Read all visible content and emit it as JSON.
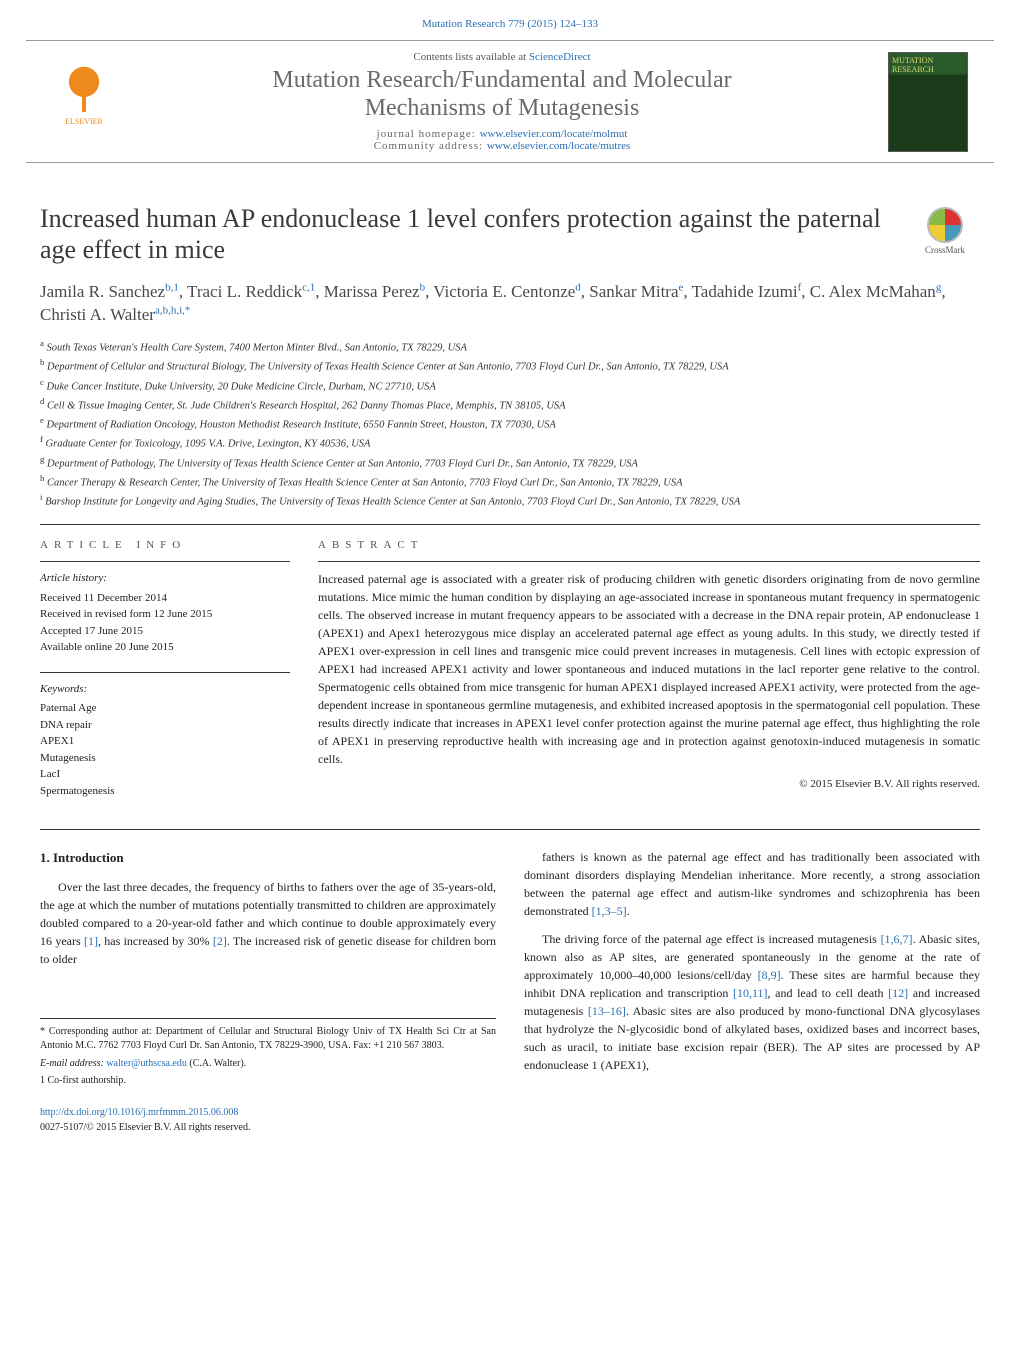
{
  "running_head": "Mutation Research 779 (2015) 124–133",
  "banner": {
    "contents_prefix": "Contents lists available at ",
    "contents_link": "ScienceDirect",
    "journal_name_l1": "Mutation Research/Fundamental and Molecular",
    "journal_name_l2": "Mechanisms of Mutagenesis",
    "homepage_label": "journal homepage: ",
    "homepage_url": "www.elsevier.com/locate/molmut",
    "community_label": "Community address: ",
    "community_url": "www.elsevier.com/locate/mutres",
    "elsevier_label": "ELSEVIER",
    "cover_text": "MUTATION RESEARCH"
  },
  "crossmark_label": "CrossMark",
  "title": "Increased human AP endonuclease 1 level confers protection against the paternal age effect in mice",
  "authors_html": "Jamila R. Sanchez<sup>b,1</sup>, Traci L. Reddick<sup>c,1</sup>, Marissa Perez<sup>b</sup>, Victoria E. Centonze<sup>d</sup>, Sankar Mitra<sup>e</sup>, Tadahide Izumi<sup>f</sup>, C. Alex McMahan<sup>g</sup>, Christi A. Walter<sup>a,b,h,i,*</sup>",
  "affiliations": [
    {
      "key": "a",
      "text": "South Texas Veteran's Health Care System, 7400 Merton Minter Blvd., San Antonio, TX 78229, USA"
    },
    {
      "key": "b",
      "text": "Department of Cellular and Structural Biology, The University of Texas Health Science Center at San Antonio, 7703 Floyd Curl Dr., San Antonio, TX 78229, USA"
    },
    {
      "key": "c",
      "text": "Duke Cancer Institute, Duke University, 20 Duke Medicine Circle, Durham, NC 27710, USA"
    },
    {
      "key": "d",
      "text": "Cell & Tissue Imaging Center, St. Jude Children's Research Hospital, 262 Danny Thomas Place, Memphis, TN 38105, USA"
    },
    {
      "key": "e",
      "text": "Department of Radiation Oncology, Houston Methodist Research Institute, 6550 Fannin Street, Houston, TX 77030, USA"
    },
    {
      "key": "f",
      "text": "Graduate Center for Toxicology, 1095 V.A. Drive, Lexington, KY 40536, USA"
    },
    {
      "key": "g",
      "text": "Department of Pathology, The University of Texas Health Science Center at San Antonio, 7703 Floyd Curl Dr., San Antonio, TX 78229, USA"
    },
    {
      "key": "h",
      "text": "Cancer Therapy & Research Center, The University of Texas Health Science Center at San Antonio, 7703 Floyd Curl Dr., San Antonio, TX 78229, USA"
    },
    {
      "key": "i",
      "text": "Barshop Institute for Longevity and Aging Studies, The University of Texas Health Science Center at San Antonio, 7703 Floyd Curl Dr., San Antonio, TX 78229, USA"
    }
  ],
  "article_info": {
    "head": "ARTICLE INFO",
    "history_title": "Article history:",
    "history": [
      "Received 11 December 2014",
      "Received in revised form 12 June 2015",
      "Accepted 17 June 2015",
      "Available online 20 June 2015"
    ],
    "keywords_title": "Keywords:",
    "keywords": [
      "Paternal Age",
      "DNA repair",
      "APEX1",
      "Mutagenesis",
      "LacI",
      "Spermatogenesis"
    ]
  },
  "abstract": {
    "head": "ABSTRACT",
    "text": "Increased paternal age is associated with a greater risk of producing children with genetic disorders originating from de novo germline mutations. Mice mimic the human condition by displaying an age-associated increase in spontaneous mutant frequency in spermatogenic cells. The observed increase in mutant frequency appears to be associated with a decrease in the DNA repair protein, AP endonuclease 1 (APEX1) and Apex1 heterozygous mice display an accelerated paternal age effect as young adults. In this study, we directly tested if APEX1 over-expression in cell lines and transgenic mice could prevent increases in mutagenesis. Cell lines with ectopic expression of APEX1 had increased APEX1 activity and lower spontaneous and induced mutations in the lacI reporter gene relative to the control. Spermatogenic cells obtained from mice transgenic for human APEX1 displayed increased APEX1 activity, were protected from the age-dependent increase in spontaneous germline mutagenesis, and exhibited increased apoptosis in the spermatogonial cell population. These results directly indicate that increases in APEX1 level confer protection against the murine paternal age effect, thus highlighting the role of APEX1 in preserving reproductive health with increasing age and in protection against genotoxin-induced mutagenesis in somatic cells.",
    "copyright": "© 2015 Elsevier B.V. All rights reserved."
  },
  "intro": {
    "heading": "1. Introduction",
    "p1_pre": "Over the last three decades, the frequency of births to fathers over the age of 35-years-old, the age at which the number of mutations potentially transmitted to children are approximately doubled compared to a 20-year-old father and which continue to double approximately every 16 years ",
    "r1": "[1]",
    "p1_mid": ", has increased by 30% ",
    "r2": "[2]",
    "p1_post": ". The increased risk of genetic disease for children born to older",
    "p2_pre": "fathers is known as the paternal age effect and has traditionally been associated with dominant disorders displaying Mendelian inheritance. More recently, a strong association between the paternal age effect and autism-like syndromes and schizophrenia has been demonstrated ",
    "r3": "[1,3–5]",
    "p2_post": ".",
    "p3_a": "The driving force of the paternal age effect is increased mutagenesis ",
    "r4": "[1,6,7]",
    "p3_b": ". Abasic sites, known also as AP sites, are generated spontaneously in the genome at the rate of approximately 10,000–40,000 lesions/cell/day ",
    "r5": "[8,9]",
    "p3_c": ". These sites are harmful because they inhibit DNA replication and transcription ",
    "r6": "[10,11]",
    "p3_d": ", and lead to cell death ",
    "r7": "[12]",
    "p3_e": " and increased mutagenesis ",
    "r8": "[13–16]",
    "p3_f": ". Abasic sites are also produced by mono-functional DNA glycosylases that hydrolyze the N-glycosidic bond of alkylated bases, oxidized bases and incorrect bases, such as uracil, to initiate base excision repair (BER). The AP sites are processed by AP endonuclease 1 (APEX1),"
  },
  "footnotes": {
    "corr": "* Corresponding author at: Department of Cellular and Structural Biology Univ of TX Health Sci Ctr at San Antonio M.C. 7762 7703 Floyd Curl Dr. San Antonio, TX 78229-3900, USA. Fax: +1 210 567 3803.",
    "email_label": "E-mail address: ",
    "email": "walter@uthscsa.edu",
    "email_tail": " (C.A. Walter).",
    "cofirst": "1 Co-first authorship."
  },
  "doi": {
    "url": "http://dx.doi.org/10.1016/j.mrfmmm.2015.06.008",
    "issn_line": "0027-5107/© 2015 Elsevier B.V. All rights reserved."
  },
  "colors": {
    "link": "#2a6fb5",
    "elsevier_orange": "#ee8a1d",
    "text_gray": "#4a4a4a"
  }
}
